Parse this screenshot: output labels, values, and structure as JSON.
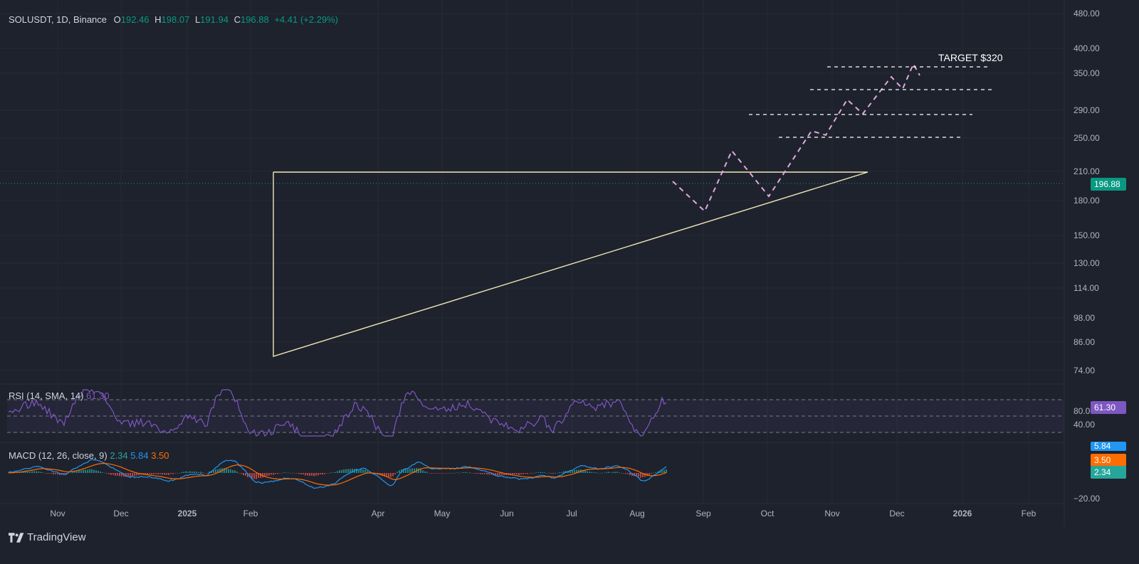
{
  "legend": {
    "symbol": "SOLUSDT, 1D, Binance",
    "open_label": "O",
    "open": "192.46",
    "high_label": "H",
    "high": "198.07",
    "low_label": "L",
    "low": "191.94",
    "close_label": "C",
    "close": "196.88",
    "change": "+4.41 (+2.29%)"
  },
  "annotation": "TARGET $320",
  "current_price": "196.88",
  "rsi": {
    "label": "RSI (14, SMA, 14)",
    "value": "61.30",
    "ticks": [
      "80.00",
      "40.00"
    ]
  },
  "macd": {
    "label": "MACD (12, 26, close, 9)",
    "v1": "2.34",
    "v2": "5.84",
    "v3": "3.50",
    "tick": "−20.00"
  },
  "price_axis_ticks": [
    "480.00",
    "400.00",
    "350.00",
    "290.00",
    "250.00",
    "210.00",
    "180.00",
    "150.00",
    "130.00",
    "114.00",
    "98.00",
    "86.00",
    "74.00"
  ],
  "time_axis_ticks": [
    "Nov",
    "Dec",
    "2025",
    "Feb",
    "Apr",
    "May",
    "Jun",
    "Jul",
    "Aug",
    "Sep",
    "Oct",
    "Nov",
    "Dec",
    "2026",
    "Feb"
  ],
  "brand": "TradingView",
  "colors": {
    "background": "#1e222d",
    "up": "#089981",
    "down": "#f23645",
    "pattern": "#f0e6b6",
    "projection": "#e2a8e0",
    "rsi": "#7e57c2",
    "macd": "#2196f3",
    "signal": "#ff6d00"
  },
  "icons": {
    "brand": "tradingview-logo-icon"
  }
}
